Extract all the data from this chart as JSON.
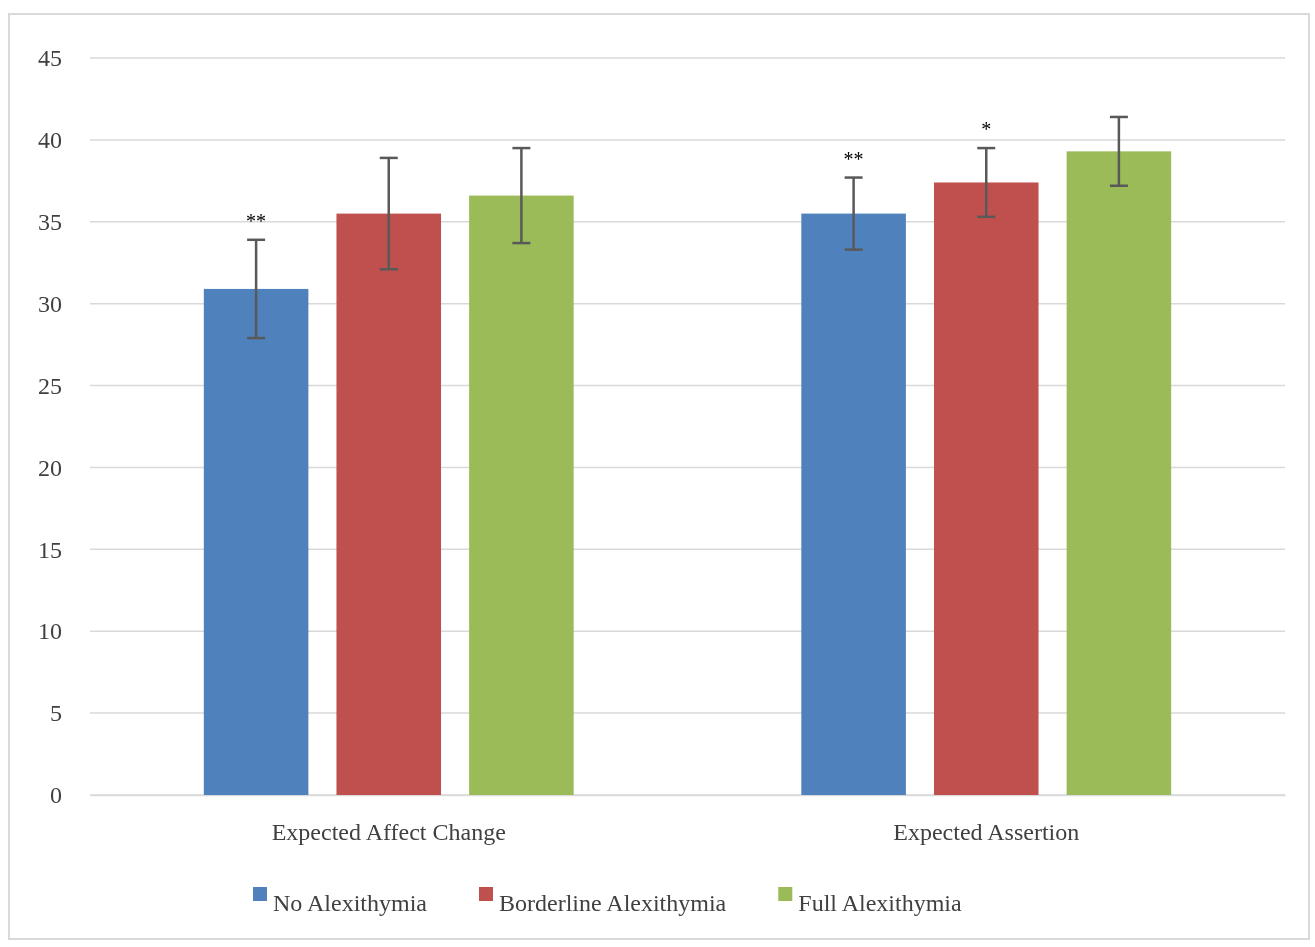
{
  "chart_data": {
    "type": "bar",
    "categories": [
      "Expected Affect Change",
      "Expected Assertion"
    ],
    "series": [
      {
        "name": "No Alexithymia",
        "color": "#4f81bd",
        "values": [
          30.9,
          35.5
        ],
        "errors": [
          3.0,
          2.2
        ]
      },
      {
        "name": "Borderline Alexithymia",
        "color": "#c0504d",
        "values": [
          35.5,
          37.4
        ],
        "errors": [
          3.4,
          2.1
        ]
      },
      {
        "name": "Full Alexithymia",
        "color": "#9bbb59",
        "values": [
          36.6,
          39.3
        ],
        "errors": [
          2.9,
          2.1
        ]
      }
    ],
    "ylim": [
      0,
      45
    ],
    "yticks": [
      0,
      5,
      10,
      15,
      20,
      25,
      30,
      35,
      40,
      45
    ],
    "grid": "y",
    "legend": "bottom",
    "annotations": [
      "**",
      "**",
      "*"
    ]
  }
}
